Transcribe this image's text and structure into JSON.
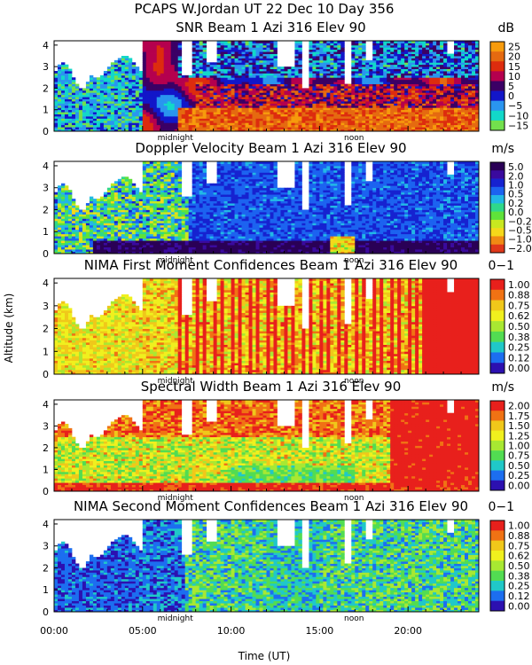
{
  "figure": {
    "title": "PCAPS W.Jordan UT  22 Dec 10 Day 356",
    "ylabel": "Altitude (km)",
    "xlabel": "Time (UT)",
    "x_ticks": [
      "00:00",
      "05:00",
      "10:00",
      "15:00",
      "20:00"
    ],
    "midnight_label": "midnight",
    "noon_label": "noon"
  },
  "chart_data": [
    {
      "type": "heatmap",
      "title": "SNR Beam 1 Azi 316 Elev 90",
      "unit": "dB",
      "ylabel": "Altitude (km)",
      "y_ticks": [
        "0",
        "1",
        "2",
        "3",
        "4"
      ],
      "ylim": [
        0,
        4.2
      ],
      "xlim": [
        0,
        24
      ],
      "colorbar_ticks": [
        "25",
        "20",
        "15",
        "10",
        "5",
        "0",
        "−5",
        "−10",
        "−15"
      ],
      "colors": [
        "#f79b0c",
        "#e56a10",
        "#dd2c0e",
        "#b5004e",
        "#3b0065",
        "#1216c9",
        "#2a95ef",
        "#12d8c9",
        "#73e04d"
      ],
      "profile": "snr"
    },
    {
      "type": "heatmap",
      "title": "Doppler Velocity Beam 1 Azi 316 Elev 90",
      "unit": "m/s",
      "ylabel": "Altitude (km)",
      "y_ticks": [
        "0",
        "1",
        "2",
        "3",
        "4"
      ],
      "ylim": [
        0,
        4.2
      ],
      "xlim": [
        0,
        24
      ],
      "colorbar_ticks": [
        "5.0",
        "2.0",
        "1.0",
        "0.5",
        "0.2",
        "0.0",
        "−0.2",
        "−0.5",
        "−1.0",
        "−2.0"
      ],
      "colors": [
        "#2a0056",
        "#3a0a9e",
        "#1622d0",
        "#1c63f0",
        "#22b8e6",
        "#2fd88a",
        "#5fe23a",
        "#c8e820",
        "#f5d81a",
        "#f08a14",
        "#e0381a"
      ],
      "profile": "doppler"
    },
    {
      "type": "heatmap",
      "title": "NIMA First Moment Confidences Beam 1 Azi 316 Elev 90",
      "unit": "0−1",
      "ylabel": "Altitude (km)",
      "y_ticks": [
        "0",
        "1",
        "2",
        "3",
        "4"
      ],
      "ylim": [
        0,
        4.2
      ],
      "xlim": [
        0,
        24
      ],
      "colorbar_ticks": [
        "1.00",
        "0.88",
        "0.75",
        "0.62",
        "0.50",
        "0.38",
        "0.25",
        "0.12",
        "0.00"
      ],
      "colors": [
        "#e8201c",
        "#f07214",
        "#f0c81a",
        "#f0f01e",
        "#a8e832",
        "#52dc52",
        "#20c8c8",
        "#1c6ef0",
        "#2c10b0"
      ],
      "profile": "nima1"
    },
    {
      "type": "heatmap",
      "title": "Spectral Width Beam 1 Azi 316 Elev 90",
      "unit": "m/s",
      "ylabel": "Altitude (km)",
      "y_ticks": [
        "0",
        "1",
        "2",
        "3",
        "4"
      ],
      "ylim": [
        0,
        4.2
      ],
      "xlim": [
        0,
        24
      ],
      "colorbar_ticks": [
        "2.00",
        "1.75",
        "1.50",
        "1.25",
        "1.00",
        "0.75",
        "0.50",
        "0.25",
        "0.00"
      ],
      "colors": [
        "#e8201c",
        "#f07214",
        "#f0c81a",
        "#f0f01e",
        "#a8e832",
        "#52dc52",
        "#20c8c8",
        "#1c6ef0",
        "#2c10b0"
      ],
      "profile": "width"
    },
    {
      "type": "heatmap",
      "title": "NIMA Second Moment Confidences Beam 1 Azi 316 Elev 90",
      "unit": "0−1",
      "ylabel": "Altitude (km)",
      "y_ticks": [
        "0",
        "1",
        "2",
        "3",
        "4"
      ],
      "ylim": [
        0,
        4.2
      ],
      "xlim": [
        0,
        24
      ],
      "colorbar_ticks": [
        "1.00",
        "0.88",
        "0.75",
        "0.62",
        "0.50",
        "0.38",
        "0.25",
        "0.12",
        "0.00"
      ],
      "colors": [
        "#e8201c",
        "#f07214",
        "#f0c81a",
        "#f0f01e",
        "#a8e832",
        "#52dc52",
        "#20c8c8",
        "#1c6ef0",
        "#2c10b0"
      ],
      "profile": "nima2"
    }
  ]
}
